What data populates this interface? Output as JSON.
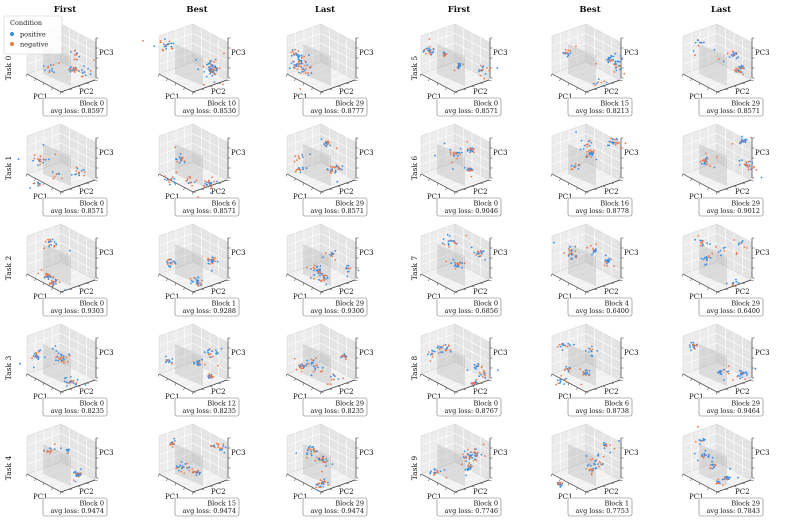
{
  "legend": {
    "title": "Condition",
    "entries": [
      {
        "label": "positive",
        "color": "#3a8ee6"
      },
      {
        "label": "negative",
        "color": "#f07848"
      }
    ]
  },
  "axes_labels": {
    "x": "PC1",
    "y": "PC2",
    "z": "PC3"
  },
  "column_headers": [
    "First",
    "Best",
    "Last",
    "First",
    "Best",
    "Last"
  ],
  "row_labels_left": [
    "Task 0",
    "Task 1",
    "Task 2",
    "Task 3",
    "Task 4"
  ],
  "row_labels_right": [
    "Task 5",
    "Task 6",
    "Task 7",
    "Task 8",
    "Task 9"
  ],
  "chart_data": {
    "type": "scatter",
    "dimensions": 3,
    "series_names": [
      "positive",
      "negative"
    ],
    "panels": [
      {
        "task": "Task 0",
        "stage": "First",
        "block": "Block 0",
        "avg_loss": "avg loss: 0.8597"
      },
      {
        "task": "Task 0",
        "stage": "Best",
        "block": "Block 10",
        "avg_loss": "avg loss: 0.8530"
      },
      {
        "task": "Task 0",
        "stage": "Last",
        "block": "Block 29",
        "avg_loss": "avg loss: 0.8777"
      },
      {
        "task": "Task 5",
        "stage": "First",
        "block": "Block 0",
        "avg_loss": "avg loss: 0.8571"
      },
      {
        "task": "Task 5",
        "stage": "Best",
        "block": "Block 15",
        "avg_loss": "avg loss: 0.8213"
      },
      {
        "task": "Task 5",
        "stage": "Last",
        "block": "Block 29",
        "avg_loss": "avg loss: 0.8571"
      },
      {
        "task": "Task 1",
        "stage": "First",
        "block": "Block 0",
        "avg_loss": "avg loss: 0.8571"
      },
      {
        "task": "Task 1",
        "stage": "Best",
        "block": "Block 6",
        "avg_loss": "avg loss: 0.8571"
      },
      {
        "task": "Task 1",
        "stage": "Last",
        "block": "Block 29",
        "avg_loss": "avg loss: 0.8571"
      },
      {
        "task": "Task 6",
        "stage": "First",
        "block": "Block 0",
        "avg_loss": "avg loss: 0.9046"
      },
      {
        "task": "Task 6",
        "stage": "Best",
        "block": "Block 16",
        "avg_loss": "avg loss: 0.8778"
      },
      {
        "task": "Task 6",
        "stage": "Last",
        "block": "Block 29",
        "avg_loss": "avg loss: 0.9012"
      },
      {
        "task": "Task 2",
        "stage": "First",
        "block": "Block 0",
        "avg_loss": "avg loss: 0.9303"
      },
      {
        "task": "Task 2",
        "stage": "Best",
        "block": "Block 1",
        "avg_loss": "avg loss: 0.9288"
      },
      {
        "task": "Task 2",
        "stage": "Last",
        "block": "Block 29",
        "avg_loss": "avg loss: 0.9300"
      },
      {
        "task": "Task 7",
        "stage": "First",
        "block": "Block 0",
        "avg_loss": "avg loss: 0.6856"
      },
      {
        "task": "Task 7",
        "stage": "Best",
        "block": "Block 4",
        "avg_loss": "avg loss: 0.6400"
      },
      {
        "task": "Task 7",
        "stage": "Last",
        "block": "Block 29",
        "avg_loss": "avg loss: 0.6400"
      },
      {
        "task": "Task 3",
        "stage": "First",
        "block": "Block 0",
        "avg_loss": "avg loss: 0.8235"
      },
      {
        "task": "Task 3",
        "stage": "Best",
        "block": "Block 12",
        "avg_loss": "avg loss: 0.8235"
      },
      {
        "task": "Task 3",
        "stage": "Last",
        "block": "Block 29",
        "avg_loss": "avg loss: 0.8235"
      },
      {
        "task": "Task 8",
        "stage": "First",
        "block": "Block 0",
        "avg_loss": "avg loss: 0.8767"
      },
      {
        "task": "Task 8",
        "stage": "Best",
        "block": "Block 6",
        "avg_loss": "avg loss: 0.8738"
      },
      {
        "task": "Task 8",
        "stage": "Last",
        "block": "Block 29",
        "avg_loss": "avg loss: 0.9464"
      },
      {
        "task": "Task 4",
        "stage": "First",
        "block": "Block 0",
        "avg_loss": "avg loss: 0.9474"
      },
      {
        "task": "Task 4",
        "stage": "Best",
        "block": "Block 15",
        "avg_loss": "avg loss: 0.9474"
      },
      {
        "task": "Task 4",
        "stage": "Last",
        "block": "Block 29",
        "avg_loss": "avg loss: 0.9474"
      },
      {
        "task": "Task 9",
        "stage": "First",
        "block": "Block 0",
        "avg_loss": "avg loss: 0.7746"
      },
      {
        "task": "Task 9",
        "stage": "Best",
        "block": "Block 1",
        "avg_loss": "avg loss: 0.7753"
      },
      {
        "task": "Task 9",
        "stage": "Last",
        "block": "Block 29",
        "avg_loss": "avg loss: 0.7843"
      }
    ]
  }
}
